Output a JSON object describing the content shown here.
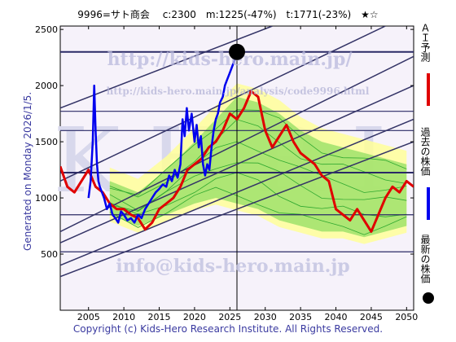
{
  "header": {
    "text": "9996=サト商会　 c:2300　m:1225(-47%)　t:1771(-23%)　★☆"
  },
  "generated": "Generated on Monday 2026/1/5.",
  "footer": "Copyright (c) Kids-Hero Research Institute. All Rights Reserved.",
  "watermarks": {
    "top_url": "http://kids-hero.main.jp/",
    "mid_url": "http://kids-hero.main.jp/analysis/code9996.html",
    "email": "info@kids-hero.main.jp",
    "big": "K   H   R   I"
  },
  "legend": {
    "prediction": "ＡＩ予測",
    "past": "過去の株価",
    "latest": "最新の株価"
  },
  "colors": {
    "prediction": "#e00000",
    "past": "#0000ee",
    "latest": "#000000",
    "band_outer": "#ffff99",
    "band_inner": "#99e066",
    "channel_lines": "#333366",
    "horizontal_lines": "#2a2a66"
  },
  "chart_data": {
    "type": "line",
    "title": "9996=サト商会",
    "xlim": [
      2001,
      2051
    ],
    "ylim": [
      0,
      2530
    ],
    "x_ticks": [
      2005,
      2010,
      2015,
      2020,
      2025,
      2030,
      2035,
      2040,
      2045,
      2050
    ],
    "y_ticks": [
      500,
      1000,
      1500,
      2000,
      2500
    ],
    "latest": {
      "x": 2026.0,
      "y": 2300
    },
    "horizontal_levels": [
      2300,
      1771,
      1600,
      1225,
      850,
      520
    ],
    "vertical_marker_x": 2026.0,
    "past_prices": {
      "name": "過去の株価",
      "x": [
        2005.0,
        2005.3,
        2005.6,
        2005.8,
        2006.0,
        2006.2,
        2006.4,
        2006.6,
        2006.9,
        2007.2,
        2007.6,
        2008.0,
        2008.4,
        2008.8,
        2009.2,
        2009.6,
        2010.0,
        2010.5,
        2011.0,
        2011.5,
        2012.0,
        2012.5,
        2013.0,
        2013.5,
        2014.0,
        2014.5,
        2015.0,
        2015.5,
        2016.0,
        2016.4,
        2016.8,
        2017.2,
        2017.6,
        2018.0,
        2018.3,
        2018.6,
        2018.9,
        2019.2,
        2019.6,
        2020.0,
        2020.3,
        2020.6,
        2020.9,
        2021.2,
        2021.5,
        2021.8,
        2022.1,
        2022.4,
        2022.7,
        2023.0,
        2023.3,
        2023.6,
        2024.0,
        2024.3,
        2024.6,
        2024.9,
        2025.2,
        2025.5,
        2025.8,
        2026.0
      ],
      "y": [
        1000,
        1150,
        1500,
        2000,
        1600,
        1300,
        1150,
        1100,
        1050,
        1000,
        900,
        950,
        850,
        820,
        780,
        880,
        850,
        800,
        820,
        780,
        850,
        820,
        900,
        950,
        1000,
        1050,
        1080,
        1120,
        1100,
        1200,
        1150,
        1250,
        1180,
        1300,
        1700,
        1550,
        1800,
        1600,
        1750,
        1500,
        1650,
        1450,
        1550,
        1300,
        1200,
        1300,
        1250,
        1450,
        1600,
        1700,
        1750,
        1850,
        1900,
        2000,
        2050,
        2100,
        2150,
        2200,
        2250,
        2300
      ]
    },
    "ai_prediction": {
      "name": "ＡＩ予測",
      "x": [
        2001.0,
        2002.0,
        2003.0,
        2004.0,
        2005.0,
        2006.0,
        2007.0,
        2008.0,
        2009.0,
        2010.0,
        2011.0,
        2012.0,
        2013.0,
        2014.0,
        2015.0,
        2016.0,
        2017.0,
        2018.0,
        2019.0,
        2020.0,
        2021.0,
        2022.0,
        2023.0,
        2024.0,
        2025.0,
        2026.0,
        2027.0,
        2028.0,
        2029.0,
        2030.0,
        2031.0,
        2032.0,
        2033.0,
        2034.0,
        2035.0,
        2036.0,
        2037.0,
        2038.0,
        2039.0,
        2040.0,
        2041.0,
        2042.0,
        2043.0,
        2044.0,
        2045.0,
        2046.0,
        2047.0,
        2048.0,
        2049.0,
        2050.0,
        2051.0
      ],
      "y": [
        1280,
        1100,
        1050,
        1150,
        1250,
        1100,
        1050,
        950,
        900,
        900,
        850,
        820,
        720,
        780,
        900,
        950,
        1000,
        1100,
        1250,
        1300,
        1350,
        1450,
        1500,
        1600,
        1750,
        1700,
        1800,
        1950,
        1900,
        1600,
        1450,
        1550,
        1650,
        1500,
        1400,
        1350,
        1300,
        1200,
        1150,
        900,
        850,
        800,
        900,
        800,
        700,
        850,
        1000,
        1100,
        1050,
        1150,
        1100
      ]
    },
    "band_upper": {
      "x": [
        2008,
        2012,
        2016,
        2020,
        2023,
        2026,
        2029,
        2032,
        2035,
        2038,
        2041,
        2044,
        2047,
        2050
      ],
      "y": [
        1150,
        1050,
        1250,
        1500,
        1700,
        1900,
        1850,
        1750,
        1600,
        1500,
        1450,
        1400,
        1350,
        1300
      ]
    },
    "band_lower": {
      "x": [
        2008,
        2012,
        2016,
        2020,
        2023,
        2026,
        2029,
        2032,
        2035,
        2038,
        2041,
        2044,
        2047,
        2050
      ],
      "y": [
        850,
        750,
        850,
        950,
        1000,
        950,
        900,
        800,
        750,
        700,
        700,
        650,
        700,
        750
      ]
    },
    "channel_lines": [
      {
        "x": [
          2001,
          2031
        ],
        "y": [
          1800,
          2530
        ]
      },
      {
        "x": [
          2001,
          2047
        ],
        "y": [
          1150,
          2530
        ]
      },
      {
        "x": [
          2001,
          2051
        ],
        "y": [
          700,
          2260
        ]
      },
      {
        "x": [
          2001,
          2051
        ],
        "y": [
          600,
          2000
        ]
      },
      {
        "x": [
          2001,
          2051
        ],
        "y": [
          400,
          1700
        ]
      },
      {
        "x": [
          2001,
          2051
        ],
        "y": [
          300,
          1500
        ]
      }
    ]
  }
}
